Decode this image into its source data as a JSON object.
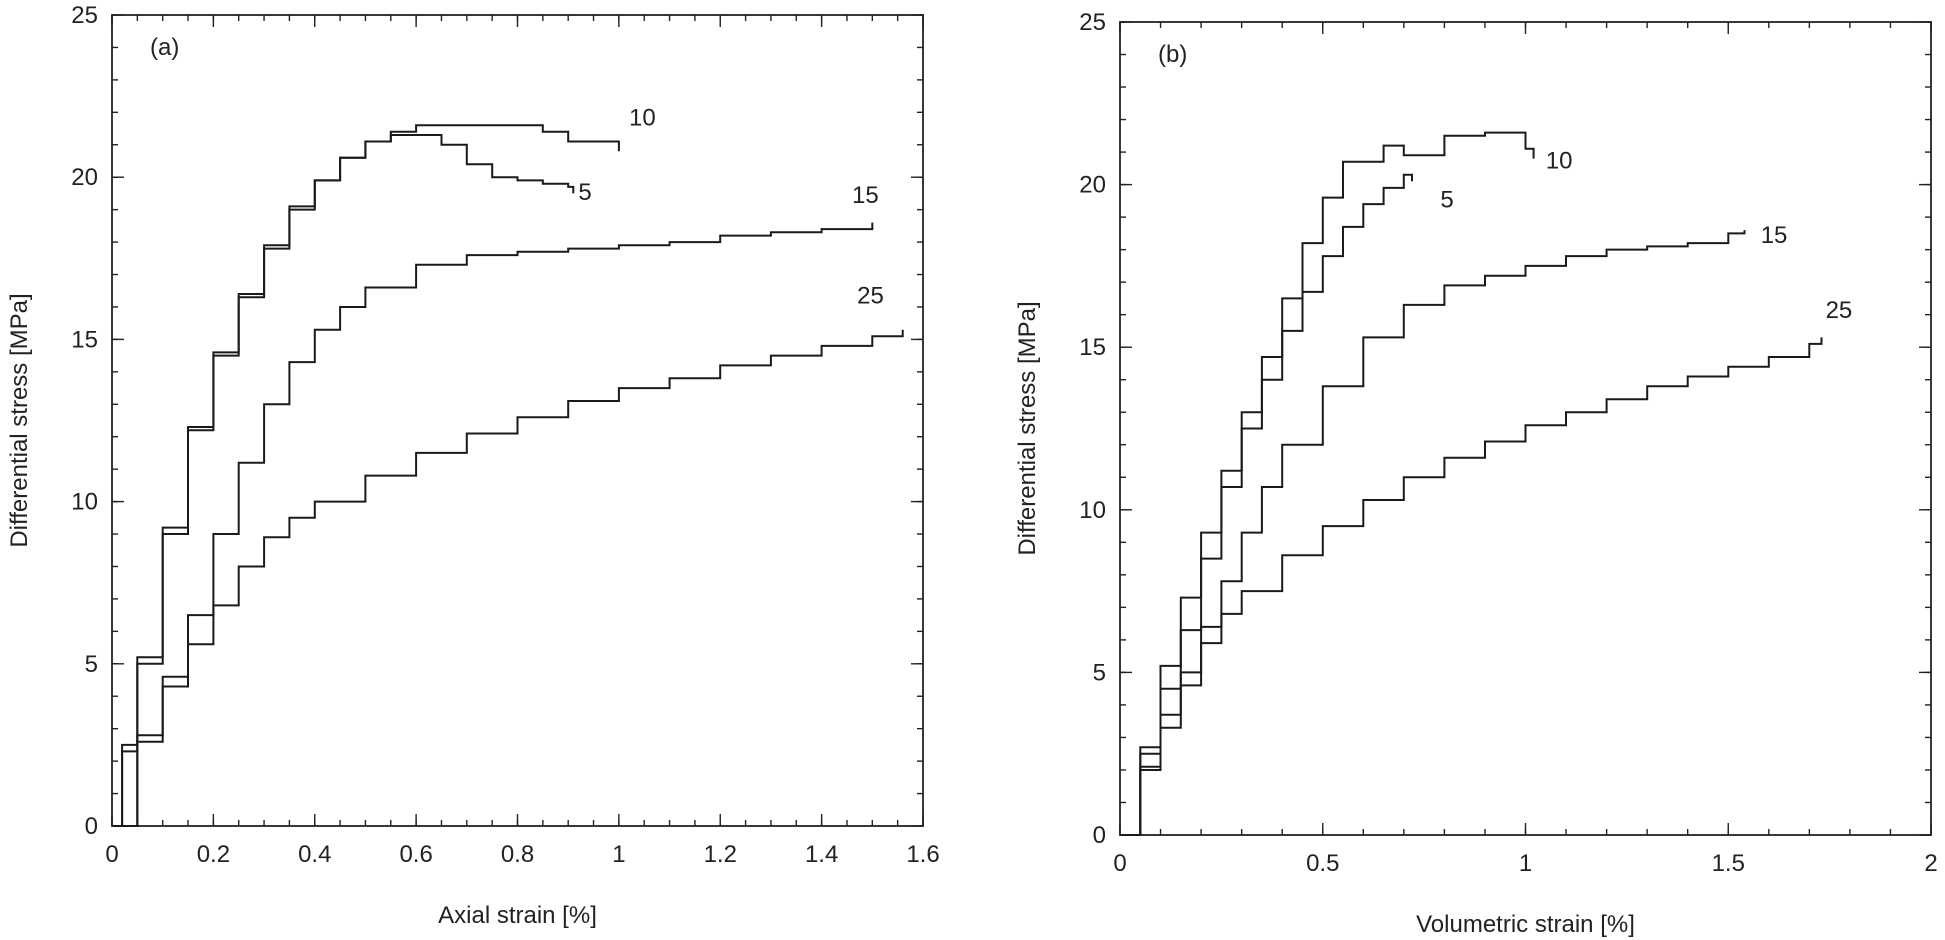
{
  "chart_data": [
    {
      "id": "a",
      "type": "line",
      "panel_label": "(a)",
      "xlabel": "Axial strain [%]",
      "ylabel": "Differential stress [MPa]",
      "xlim": [
        0,
        1.6
      ],
      "ylim": [
        0,
        25
      ],
      "xticks": [
        0,
        0.2,
        0.4,
        0.6,
        0.8,
        1.0,
        1.2,
        1.4,
        1.6
      ],
      "xtick_labels": [
        "0",
        "0.2",
        "0.4",
        "0.6",
        "0.8",
        "1",
        "1.2",
        "1.4",
        "1.6"
      ],
      "xminor_step": 0.05,
      "yticks": [
        0,
        5,
        10,
        15,
        20,
        25
      ],
      "ytick_labels": [
        "0",
        "5",
        "10",
        "15",
        "20",
        "25"
      ],
      "yminor_step": 1,
      "series": [
        {
          "name": "5",
          "label": "5",
          "label_at": [
            0.92,
            19.3
          ],
          "x": [
            0,
            0.02,
            0.05,
            0.1,
            0.15,
            0.2,
            0.25,
            0.3,
            0.35,
            0.4,
            0.45,
            0.5,
            0.55,
            0.6,
            0.65,
            0.7,
            0.75,
            0.8,
            0.85,
            0.9,
            0.91
          ],
          "y": [
            0,
            2.5,
            5.2,
            9.2,
            12.3,
            14.6,
            16.4,
            17.9,
            19.1,
            19.9,
            20.6,
            21.1,
            21.3,
            21.3,
            21.0,
            20.4,
            20.0,
            19.9,
            19.8,
            19.7,
            19.5
          ]
        },
        {
          "name": "10",
          "label": "10",
          "label_at": [
            1.02,
            21.6
          ],
          "x": [
            0,
            0.02,
            0.05,
            0.1,
            0.15,
            0.2,
            0.25,
            0.3,
            0.35,
            0.4,
            0.45,
            0.5,
            0.55,
            0.6,
            0.7,
            0.8,
            0.85,
            0.9,
            1.0
          ],
          "y": [
            0,
            2.3,
            5.0,
            9.0,
            12.2,
            14.5,
            16.3,
            17.8,
            19.0,
            19.9,
            20.6,
            21.1,
            21.4,
            21.6,
            21.6,
            21.6,
            21.4,
            21.1,
            20.8
          ]
        },
        {
          "name": "15",
          "label": "15",
          "label_at": [
            1.46,
            19.2
          ],
          "x": [
            0,
            0.05,
            0.1,
            0.15,
            0.2,
            0.25,
            0.3,
            0.35,
            0.4,
            0.45,
            0.5,
            0.6,
            0.7,
            0.8,
            0.9,
            1.0,
            1.1,
            1.2,
            1.3,
            1.4,
            1.5
          ],
          "y": [
            0,
            2.8,
            4.6,
            6.5,
            9.0,
            11.2,
            13.0,
            14.3,
            15.3,
            16.0,
            16.6,
            17.3,
            17.6,
            17.7,
            17.8,
            17.9,
            18.0,
            18.2,
            18.3,
            18.4,
            18.6
          ]
        },
        {
          "name": "25",
          "label": "25",
          "label_at": [
            1.47,
            16.1
          ],
          "x": [
            0,
            0.05,
            0.1,
            0.15,
            0.2,
            0.25,
            0.3,
            0.35,
            0.4,
            0.5,
            0.6,
            0.7,
            0.8,
            0.9,
            1.0,
            1.1,
            1.2,
            1.3,
            1.4,
            1.5,
            1.56
          ],
          "y": [
            0,
            2.6,
            4.3,
            5.6,
            6.8,
            8.0,
            8.9,
            9.5,
            10.0,
            10.8,
            11.5,
            12.1,
            12.6,
            13.1,
            13.5,
            13.8,
            14.2,
            14.5,
            14.8,
            15.1,
            15.3
          ]
        }
      ]
    },
    {
      "id": "b",
      "type": "line",
      "panel_label": "(b)",
      "xlabel": "Volumetric strain [%]",
      "ylabel": "Differential stress [MPa]",
      "xlim": [
        0,
        2
      ],
      "ylim": [
        0,
        25
      ],
      "xticks": [
        0,
        0.5,
        1.0,
        1.5,
        2.0
      ],
      "xtick_labels": [
        "0",
        "0.5",
        "1",
        "1.5",
        "2"
      ],
      "xminor_step": 0.1,
      "yticks": [
        0,
        5,
        10,
        15,
        20,
        25
      ],
      "ytick_labels": [
        "0",
        "5",
        "10",
        "15",
        "20",
        "25"
      ],
      "yminor_step": 1,
      "series": [
        {
          "name": "5",
          "label": "5",
          "label_at": [
            0.79,
            19.3
          ],
          "x": [
            0,
            0.05,
            0.1,
            0.15,
            0.2,
            0.25,
            0.3,
            0.35,
            0.4,
            0.45,
            0.5,
            0.55,
            0.6,
            0.65,
            0.7,
            0.72
          ],
          "y": [
            0,
            2.5,
            4.5,
            6.3,
            8.5,
            10.7,
            12.5,
            14.0,
            15.5,
            16.7,
            17.8,
            18.7,
            19.4,
            19.9,
            20.3,
            20.1
          ]
        },
        {
          "name": "10",
          "label": "10",
          "label_at": [
            1.05,
            20.5
          ],
          "x": [
            0,
            0.05,
            0.1,
            0.15,
            0.2,
            0.25,
            0.3,
            0.35,
            0.4,
            0.45,
            0.5,
            0.55,
            0.65,
            0.7,
            0.8,
            0.9,
            1.0,
            1.02
          ],
          "y": [
            0,
            2.7,
            5.2,
            7.3,
            9.3,
            11.2,
            13.0,
            14.7,
            16.5,
            18.2,
            19.6,
            20.7,
            21.2,
            20.9,
            21.5,
            21.6,
            21.1,
            20.8
          ]
        },
        {
          "name": "15",
          "label": "15",
          "label_at": [
            1.58,
            18.2
          ],
          "x": [
            0,
            0.05,
            0.1,
            0.15,
            0.2,
            0.25,
            0.3,
            0.35,
            0.4,
            0.5,
            0.6,
            0.7,
            0.8,
            0.9,
            1.0,
            1.1,
            1.2,
            1.3,
            1.4,
            1.5,
            1.54
          ],
          "y": [
            0,
            2.1,
            3.7,
            5.0,
            6.4,
            7.8,
            9.3,
            10.7,
            12.0,
            13.8,
            15.3,
            16.3,
            16.9,
            17.2,
            17.5,
            17.8,
            18.0,
            18.1,
            18.2,
            18.5,
            18.6
          ]
        },
        {
          "name": "25",
          "label": "25",
          "label_at": [
            1.74,
            15.9
          ],
          "x": [
            0,
            0.05,
            0.1,
            0.15,
            0.2,
            0.25,
            0.3,
            0.4,
            0.5,
            0.6,
            0.7,
            0.8,
            0.9,
            1.0,
            1.1,
            1.2,
            1.3,
            1.4,
            1.5,
            1.6,
            1.7,
            1.73
          ],
          "y": [
            0,
            2.0,
            3.3,
            4.6,
            5.9,
            6.8,
            7.5,
            8.6,
            9.5,
            10.3,
            11.0,
            11.6,
            12.1,
            12.6,
            13.0,
            13.4,
            13.8,
            14.1,
            14.4,
            14.7,
            15.1,
            15.3
          ]
        }
      ]
    }
  ]
}
